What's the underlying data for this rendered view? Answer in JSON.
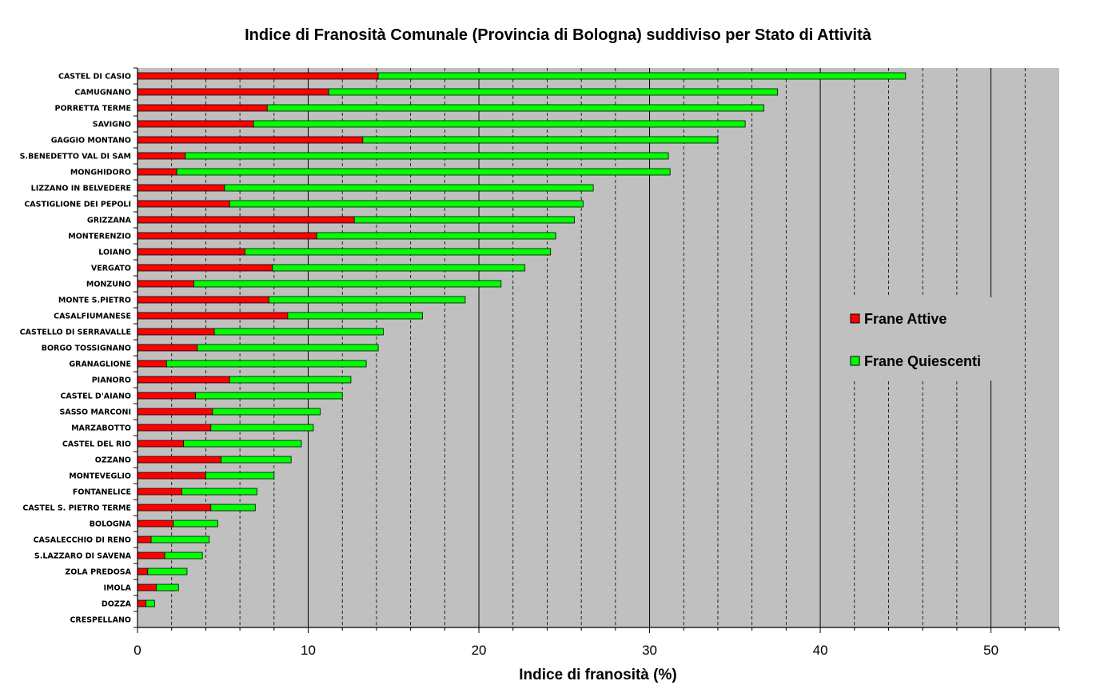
{
  "chart_data": {
    "type": "bar",
    "orientation": "horizontal",
    "stacked": true,
    "title": "Indice di Franosità Comunale (Provincia di Bologna) suddiviso per Stato di Attività",
    "xlabel": "Indice di franosità (%)",
    "ylabel": "",
    "xlim": [
      0,
      54
    ],
    "x_ticks": [
      0,
      10,
      20,
      30,
      40,
      50
    ],
    "grid": "vertical",
    "legend_position": "right",
    "categories": [
      "CASTEL DI CASIO",
      "CAMUGNANO",
      "PORRETTA TERME",
      "SAVIGNO",
      "GAGGIO MONTANO",
      "S.BENEDETTO VAL DI SAM",
      "MONGHIDORO",
      "LIZZANO IN BELVEDERE",
      "CASTIGLIONE DEI PEPOLI",
      "GRIZZANA",
      "MONTERENZIO",
      "LOIANO",
      "VERGATO",
      "MONZUNO",
      "MONTE S.PIETRO",
      "CASALFIUMANESE",
      "CASTELLO DI SERRAVALLE",
      "BORGO TOSSIGNANO",
      "GRANAGLIONE",
      "PIANORO",
      "CASTEL D'AIANO",
      "SASSO MARCONI",
      "MARZABOTTO",
      "CASTEL DEL RIO",
      "OZZANO",
      "MONTEVEGLIO",
      "FONTANELICE",
      "CASTEL S. PIETRO TERME",
      "BOLOGNA",
      "CASALECCHIO DI RENO",
      "S.LAZZARO DI SAVENA",
      "ZOLA PREDOSA",
      "IMOLA",
      "DOZZA",
      "CRESPELLANO"
    ],
    "series": [
      {
        "name": "Frane Attive",
        "color": "#ff0000",
        "values": [
          14.1,
          11.2,
          7.6,
          6.8,
          13.2,
          2.8,
          2.3,
          5.1,
          5.4,
          12.7,
          10.5,
          6.3,
          7.9,
          3.3,
          7.7,
          8.8,
          4.5,
          3.5,
          1.7,
          5.4,
          3.4,
          4.4,
          4.3,
          2.7,
          4.9,
          4.0,
          2.6,
          4.3,
          2.1,
          0.8,
          1.6,
          0.6,
          1.1,
          0.5,
          0.0
        ]
      },
      {
        "name": "Frane Quiescenti",
        "color": "#00ff00",
        "values": [
          30.9,
          26.3,
          29.1,
          28.8,
          20.8,
          28.3,
          28.9,
          21.6,
          20.7,
          12.9,
          14.0,
          17.9,
          14.8,
          18.0,
          11.5,
          7.9,
          9.9,
          10.6,
          11.7,
          7.1,
          8.6,
          6.3,
          6.0,
          6.9,
          4.1,
          4.0,
          4.4,
          2.6,
          2.6,
          3.4,
          2.2,
          2.3,
          1.3,
          0.5,
          0.0
        ]
      }
    ],
    "legend": [
      "Frane Attive",
      "Frane Quiescenti"
    ]
  },
  "colors": {
    "plot_background": "#c0c0c0",
    "attive": "#ff0000",
    "quiescenti": "#00ff00"
  }
}
